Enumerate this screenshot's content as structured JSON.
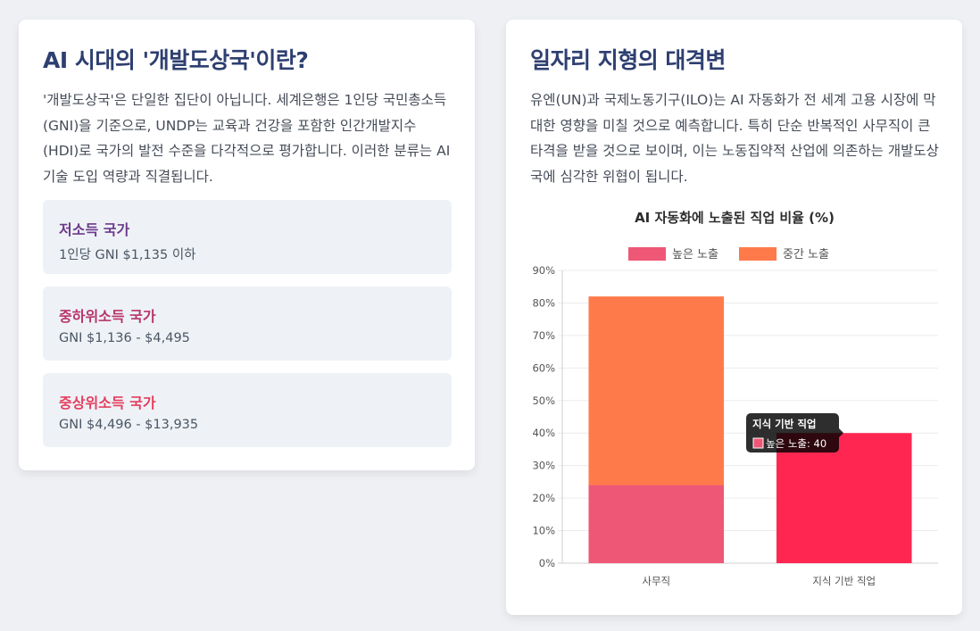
{
  "left_card": {
    "title": "AI 시대의 '개발도상국'이란?",
    "description": "'개발도상국'은 단일한 집단이 아닙니다. 세계은행은 1인당 국민총소득(GNI)을 기준으로, UNDP는 교육과 건강을 포함한 인간개발지수(HDI)로 국가의 발전 수준을 다각적으로 평가합니다. 이러한 분류는 AI 기술 도입 역량과 직결됩니다.",
    "tiers": [
      {
        "name": "저소득 국가",
        "range": "1인당 GNI $1,135 이하",
        "color": "#6d3a8c"
      },
      {
        "name": "중하위소득 국가",
        "range": "GNI $1,136 - $4,495",
        "color": "#b8356a"
      },
      {
        "name": "중상위소득 국가",
        "range": "GNI $4,496 - $13,935",
        "color": "#e53e5f"
      }
    ]
  },
  "right_card": {
    "title": "일자리 지형의 대격변",
    "description": "유엔(UN)과 국제노동기구(ILO)는 AI 자동화가 전 세계 고용 시장에 막대한 영향을 미칠 것으로 예측합니다. 특히 단순 반복적인 사무직이 큰 타격을 받을 것으로 보이며, 이는 노동집약적 산업에 의존하는 개발도상국에 심각한 위협이 됩니다."
  },
  "chart_data": {
    "type": "bar",
    "stacked": true,
    "title": "AI 자동화에 노출된 직업 비율 (%)",
    "categories": [
      "사무직",
      "지식 기반 직업"
    ],
    "series": [
      {
        "name": "높은 노출",
        "values": [
          24,
          40
        ],
        "color": "#ef5776"
      },
      {
        "name": "중간 노출",
        "values": [
          58,
          0
        ],
        "color": "#ff7a4a"
      }
    ],
    "highlight_color": "#ff2752",
    "ylim": [
      0,
      90
    ],
    "yticks": [
      0,
      10,
      20,
      30,
      40,
      50,
      60,
      70,
      80,
      90
    ],
    "ytick_suffix": "%",
    "grid": true,
    "legend_position": "top",
    "tooltip": {
      "title": "지식 기반 직업",
      "label": "높은 노출: 40"
    }
  }
}
